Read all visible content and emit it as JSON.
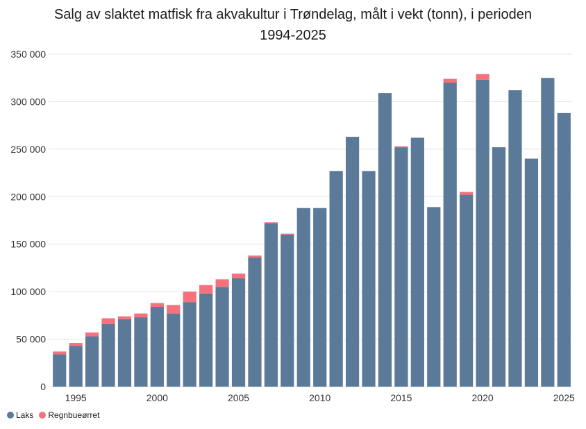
{
  "chart_data": {
    "type": "bar",
    "stacked": true,
    "title_line1": "Salg av slaktet matfisk fra akvakultur i Trøndelag, målt i vekt (tonn), i perioden",
    "title_line2": "1994-2025",
    "xlabel": "",
    "ylabel": "",
    "ylim": [
      0,
      350000
    ],
    "yticks": [
      "0",
      "50 000",
      "100 000",
      "150 000",
      "200 000",
      "250 000",
      "300 000",
      "350 000"
    ],
    "xtick_years": [
      "1995",
      "2000",
      "2005",
      "2010",
      "2015",
      "2020",
      "2025"
    ],
    "grid": true,
    "legend_position": "bottom-left",
    "categories": [
      1994,
      1995,
      1996,
      1997,
      1998,
      1999,
      2000,
      2001,
      2002,
      2003,
      2004,
      2005,
      2006,
      2007,
      2008,
      2009,
      2010,
      2011,
      2012,
      2013,
      2014,
      2015,
      2016,
      2017,
      2018,
      2019,
      2020,
      2021,
      2022,
      2023,
      2024,
      2025
    ],
    "series": [
      {
        "name": "Laks",
        "color": "#5b7a99",
        "values": [
          34000,
          43000,
          53000,
          66000,
          71000,
          73000,
          84000,
          77000,
          89000,
          98000,
          105000,
          114000,
          136000,
          172000,
          160000,
          188000,
          188000,
          227000,
          263000,
          227000,
          309000,
          252000,
          262000,
          189000,
          320000,
          202000,
          323000,
          252000,
          312000,
          240000,
          325000,
          288000
        ]
      },
      {
        "name": "Regnbueørret",
        "color": "#f5727d",
        "values": [
          3000,
          3000,
          4000,
          6000,
          3000,
          4000,
          4000,
          9000,
          11000,
          9000,
          8000,
          5000,
          2000,
          1000,
          1000,
          0,
          0,
          0,
          0,
          0,
          0,
          1000,
          0,
          0,
          4000,
          3000,
          6000,
          0,
          0,
          0,
          0,
          0
        ]
      }
    ]
  }
}
